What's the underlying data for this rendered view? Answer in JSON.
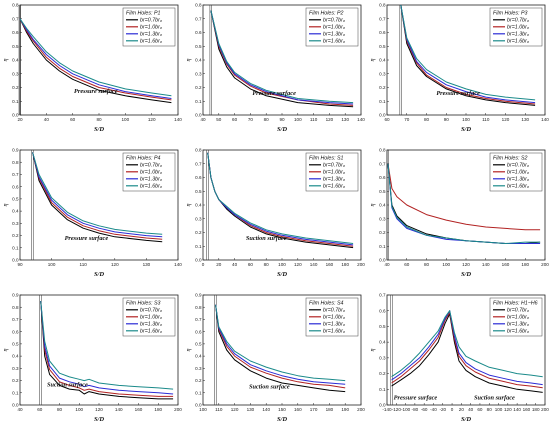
{
  "colors": {
    "series": [
      "#000000",
      "#b22222",
      "#2b2bd6",
      "#1a8a8a"
    ],
    "axis": "#222222"
  },
  "chart_data": [
    {
      "type": "line",
      "panel": "P1",
      "legend_title": "Film Holes: P1",
      "legend_position": "top-right",
      "annotations": [
        "Pressure surface"
      ],
      "xlabel": "S/D",
      "ylabel": "η",
      "xlim": [
        20,
        140
      ],
      "ylim": [
        0.0,
        0.8
      ],
      "xticks": [
        "20",
        "40",
        "60",
        "80",
        "100",
        "120",
        "140"
      ],
      "yticks": [
        "0.0",
        "0.1",
        "0.2",
        "0.3",
        "0.4",
        "0.5",
        "0.6",
        "0.7",
        "0.8"
      ],
      "x": [
        20,
        25,
        30,
        40,
        50,
        60,
        80,
        100,
        120,
        135
      ],
      "series": [
        {
          "name": "br=0.7br₀",
          "values": [
            0.7,
            0.6,
            0.52,
            0.4,
            0.32,
            0.26,
            0.18,
            0.14,
            0.11,
            0.09
          ]
        },
        {
          "name": "br=1.0br₀",
          "values": [
            0.7,
            0.61,
            0.54,
            0.42,
            0.34,
            0.28,
            0.2,
            0.16,
            0.13,
            0.11
          ]
        },
        {
          "name": "br=1.3br₀",
          "values": [
            0.7,
            0.62,
            0.55,
            0.44,
            0.36,
            0.3,
            0.22,
            0.17,
            0.14,
            0.12
          ]
        },
        {
          "name": "br=1.6br₀",
          "values": [
            0.7,
            0.63,
            0.57,
            0.46,
            0.38,
            0.32,
            0.24,
            0.19,
            0.16,
            0.14
          ]
        }
      ]
    },
    {
      "type": "line",
      "panel": "P2",
      "legend_title": "Film Holes: P2",
      "legend_position": "top-right",
      "annotations": [
        "Pressure surface"
      ],
      "xlabel": "S/D",
      "ylabel": "η",
      "xlim": [
        40,
        140
      ],
      "ylim": [
        0.0,
        0.8
      ],
      "xticks": [
        "40",
        "50",
        "60",
        "70",
        "80",
        "90",
        "100",
        "110",
        "120",
        "130",
        "140"
      ],
      "yticks": [
        "0.0",
        "0.1",
        "0.2",
        "0.3",
        "0.4",
        "0.5",
        "0.6",
        "0.7",
        "0.8"
      ],
      "x": [
        45,
        50,
        55,
        60,
        70,
        80,
        100,
        120,
        135
      ],
      "series": [
        {
          "name": "br=0.7br₀",
          "values": [
            0.76,
            0.48,
            0.35,
            0.27,
            0.19,
            0.14,
            0.09,
            0.07,
            0.06
          ]
        },
        {
          "name": "br=1.0br₀",
          "values": [
            0.76,
            0.5,
            0.37,
            0.29,
            0.21,
            0.16,
            0.11,
            0.08,
            0.07
          ]
        },
        {
          "name": "br=1.3br₀",
          "values": [
            0.76,
            0.51,
            0.38,
            0.3,
            0.22,
            0.17,
            0.11,
            0.09,
            0.08
          ]
        },
        {
          "name": "br=1.6br₀",
          "values": [
            0.76,
            0.52,
            0.39,
            0.31,
            0.23,
            0.18,
            0.12,
            0.1,
            0.09
          ]
        }
      ]
    },
    {
      "type": "line",
      "panel": "P3",
      "legend_title": "Film Holes: P3",
      "legend_position": "top-right",
      "annotations": [
        "Pressure surface"
      ],
      "xlabel": "S/D",
      "ylabel": "η",
      "xlim": [
        60,
        140
      ],
      "ylim": [
        0.0,
        0.8
      ],
      "xticks": [
        "60",
        "70",
        "80",
        "90",
        "100",
        "110",
        "120",
        "130",
        "140"
      ],
      "yticks": [
        "0.0",
        "0.1",
        "0.2",
        "0.3",
        "0.4",
        "0.5",
        "0.6",
        "0.7",
        "0.8"
      ],
      "x": [
        67,
        70,
        75,
        80,
        90,
        100,
        110,
        120,
        135
      ],
      "series": [
        {
          "name": "br=0.7br₀",
          "values": [
            0.8,
            0.52,
            0.36,
            0.28,
            0.19,
            0.14,
            0.11,
            0.09,
            0.07
          ]
        },
        {
          "name": "br=1.0br₀",
          "values": [
            0.8,
            0.54,
            0.38,
            0.29,
            0.2,
            0.15,
            0.12,
            0.1,
            0.08
          ]
        },
        {
          "name": "br=1.3br₀",
          "values": [
            0.8,
            0.55,
            0.39,
            0.31,
            0.22,
            0.17,
            0.13,
            0.11,
            0.09
          ]
        },
        {
          "name": "br=1.6br₀",
          "values": [
            0.8,
            0.56,
            0.41,
            0.33,
            0.24,
            0.19,
            0.15,
            0.13,
            0.11
          ]
        }
      ]
    },
    {
      "type": "line",
      "panel": "P4",
      "legend_title": "Film Holes: P4",
      "legend_position": "top-right",
      "annotations": [
        "Pressure surface"
      ],
      "xlabel": "S/D",
      "ylabel": "η",
      "xlim": [
        90,
        140
      ],
      "ylim": [
        0.0,
        0.9
      ],
      "xticks": [
        "90",
        "100",
        "110",
        "120",
        "130",
        "140"
      ],
      "yticks": [
        "0.0",
        "0.1",
        "0.2",
        "0.3",
        "0.4",
        "0.5",
        "0.6",
        "0.7",
        "0.8",
        "0.9"
      ],
      "x": [
        94,
        96,
        100,
        105,
        110,
        115,
        120,
        130,
        135
      ],
      "series": [
        {
          "name": "br=0.7br₀",
          "values": [
            0.88,
            0.65,
            0.45,
            0.33,
            0.26,
            0.22,
            0.19,
            0.16,
            0.15
          ]
        },
        {
          "name": "br=1.0br₀",
          "values": [
            0.88,
            0.67,
            0.47,
            0.35,
            0.28,
            0.24,
            0.21,
            0.18,
            0.17
          ]
        },
        {
          "name": "br=1.3br₀",
          "values": [
            0.88,
            0.68,
            0.49,
            0.37,
            0.3,
            0.26,
            0.23,
            0.2,
            0.19
          ]
        },
        {
          "name": "br=1.6br₀",
          "values": [
            0.88,
            0.7,
            0.51,
            0.39,
            0.32,
            0.28,
            0.25,
            0.22,
            0.21
          ]
        }
      ]
    },
    {
      "type": "line",
      "panel": "S1",
      "legend_title": "Film Holes: S1",
      "legend_position": "top-right",
      "annotations": [
        "Suction surface"
      ],
      "xlabel": "S/D",
      "ylabel": "η",
      "xlim": [
        0,
        200
      ],
      "ylim": [
        0.0,
        0.8
      ],
      "xticks": [
        "0",
        "20",
        "40",
        "60",
        "80",
        "100",
        "120",
        "140",
        "160",
        "180",
        "200"
      ],
      "yticks": [
        "0.0",
        "0.1",
        "0.2",
        "0.3",
        "0.4",
        "0.5",
        "0.6",
        "0.7",
        "0.8"
      ],
      "x": [
        6,
        10,
        15,
        20,
        30,
        40,
        60,
        80,
        100,
        130,
        160,
        190
      ],
      "series": [
        {
          "name": "br=0.7br₀",
          "values": [
            0.78,
            0.6,
            0.5,
            0.44,
            0.37,
            0.32,
            0.24,
            0.19,
            0.16,
            0.13,
            0.11,
            0.09
          ]
        },
        {
          "name": "br=1.0br₀",
          "values": [
            0.78,
            0.6,
            0.5,
            0.44,
            0.38,
            0.33,
            0.25,
            0.2,
            0.17,
            0.14,
            0.12,
            0.1
          ]
        },
        {
          "name": "br=1.3br₀",
          "values": [
            0.78,
            0.6,
            0.5,
            0.44,
            0.38,
            0.33,
            0.26,
            0.21,
            0.18,
            0.15,
            0.13,
            0.11
          ]
        },
        {
          "name": "br=1.6br₀",
          "values": [
            0.78,
            0.6,
            0.5,
            0.44,
            0.39,
            0.34,
            0.27,
            0.22,
            0.19,
            0.16,
            0.14,
            0.12
          ]
        }
      ]
    },
    {
      "type": "line",
      "panel": "S2",
      "legend_title": "Film Holes: S2",
      "legend_position": "top-right",
      "annotations": [],
      "xlabel": "S/D",
      "ylabel": "η",
      "xlim": [
        40,
        200
      ],
      "ylim": [
        0.0,
        0.8
      ],
      "xticks": [
        "40",
        "60",
        "80",
        "100",
        "120",
        "140",
        "160",
        "180",
        "200"
      ],
      "yticks": [
        "0.0",
        "0.1",
        "0.2",
        "0.3",
        "0.4",
        "0.5",
        "0.6",
        "0.7",
        "0.8"
      ],
      "x": [
        41,
        45,
        50,
        60,
        80,
        100,
        120,
        140,
        160,
        180,
        195
      ],
      "series": [
        {
          "name": "br=0.7br₀",
          "values": [
            0.7,
            0.4,
            0.32,
            0.25,
            0.19,
            0.16,
            0.14,
            0.13,
            0.12,
            0.12,
            0.13
          ]
        },
        {
          "name": "br=1.0br₀",
          "values": [
            0.7,
            0.52,
            0.46,
            0.4,
            0.33,
            0.29,
            0.26,
            0.24,
            0.23,
            0.22,
            0.22
          ]
        },
        {
          "name": "br=1.3br₀",
          "values": [
            0.7,
            0.38,
            0.3,
            0.23,
            0.18,
            0.15,
            0.14,
            0.13,
            0.12,
            0.12,
            0.12
          ]
        },
        {
          "name": "br=1.6br₀",
          "values": [
            0.7,
            0.39,
            0.31,
            0.24,
            0.18,
            0.16,
            0.14,
            0.13,
            0.12,
            0.13,
            0.13
          ]
        }
      ]
    },
    {
      "type": "line",
      "panel": "S3",
      "legend_title": "Film Holes: S3",
      "legend_position": "top-right",
      "annotations": [
        "Suction surface"
      ],
      "xlabel": "S/D",
      "ylabel": "η",
      "xlim": [
        40,
        200
      ],
      "ylim": [
        0.0,
        0.9
      ],
      "xticks": [
        "40",
        "60",
        "80",
        "100",
        "120",
        "140",
        "160",
        "180",
        "200"
      ],
      "yticks": [
        "0.0",
        "0.1",
        "0.2",
        "0.3",
        "0.4",
        "0.5",
        "0.6",
        "0.7",
        "0.8",
        "0.9"
      ],
      "x": [
        61,
        65,
        70,
        80,
        90,
        100,
        105,
        110,
        120,
        140,
        160,
        180,
        195
      ],
      "series": [
        {
          "name": "br=0.7br₀",
          "values": [
            0.85,
            0.4,
            0.25,
            0.16,
            0.13,
            0.12,
            0.09,
            0.11,
            0.09,
            0.07,
            0.06,
            0.05,
            0.05
          ]
        },
        {
          "name": "br=1.0br₀",
          "values": [
            0.85,
            0.45,
            0.29,
            0.19,
            0.16,
            0.14,
            0.12,
            0.13,
            0.11,
            0.09,
            0.08,
            0.07,
            0.07
          ]
        },
        {
          "name": "br=1.3br₀",
          "values": [
            0.85,
            0.48,
            0.32,
            0.22,
            0.19,
            0.17,
            0.15,
            0.16,
            0.14,
            0.12,
            0.11,
            0.1,
            0.09
          ]
        },
        {
          "name": "br=1.6br₀",
          "values": [
            0.85,
            0.52,
            0.36,
            0.26,
            0.23,
            0.21,
            0.2,
            0.21,
            0.18,
            0.16,
            0.15,
            0.14,
            0.13
          ]
        }
      ]
    },
    {
      "type": "line",
      "panel": "S4",
      "legend_title": "Film Holes: S4",
      "legend_position": "top-right",
      "annotations": [
        "Suction surface"
      ],
      "xlabel": "S/D",
      "ylabel": "η",
      "xlim": [
        100,
        200
      ],
      "ylim": [
        0.0,
        0.9
      ],
      "xticks": [
        "100",
        "110",
        "120",
        "130",
        "140",
        "150",
        "160",
        "170",
        "180",
        "190",
        "200"
      ],
      "yticks": [
        "0.0",
        "0.1",
        "0.2",
        "0.3",
        "0.4",
        "0.5",
        "0.6",
        "0.7",
        "0.8",
        "0.9"
      ],
      "x": [
        108,
        110,
        115,
        120,
        130,
        140,
        150,
        160,
        170,
        180,
        190
      ],
      "series": [
        {
          "name": "br=0.7br₀",
          "values": [
            0.82,
            0.6,
            0.45,
            0.37,
            0.28,
            0.22,
            0.18,
            0.16,
            0.14,
            0.12,
            0.11
          ]
        },
        {
          "name": "br=1.0br₀",
          "values": [
            0.82,
            0.62,
            0.48,
            0.4,
            0.31,
            0.26,
            0.22,
            0.19,
            0.17,
            0.16,
            0.14
          ]
        },
        {
          "name": "br=1.3br₀",
          "values": [
            0.82,
            0.63,
            0.5,
            0.42,
            0.33,
            0.28,
            0.24,
            0.21,
            0.19,
            0.18,
            0.17
          ]
        },
        {
          "name": "br=1.6br₀",
          "values": [
            0.82,
            0.64,
            0.52,
            0.44,
            0.36,
            0.31,
            0.27,
            0.24,
            0.22,
            0.21,
            0.2
          ]
        }
      ]
    },
    {
      "type": "line",
      "panel": "H1-H6",
      "legend_title": "Film Holes: H1~H6",
      "legend_position": "top-right",
      "annotations": [
        "Pressure surface",
        "Suction surface"
      ],
      "xlabel": "S/D",
      "ylabel": "η",
      "xlim": [
        -140,
        200
      ],
      "ylim": [
        0.0,
        0.7
      ],
      "xticks": [
        "-140",
        "-120",
        "-100",
        "-80",
        "-60",
        "-40",
        "-20",
        "0",
        "20",
        "40",
        "60",
        "80",
        "100",
        "120",
        "140",
        "160",
        "180",
        "200"
      ],
      "yticks": [
        "0.0",
        "0.1",
        "0.2",
        "0.3",
        "0.4",
        "0.5",
        "0.6",
        "0.7"
      ],
      "x": [
        -130,
        -110,
        -90,
        -70,
        -50,
        -30,
        -15,
        -5,
        5,
        15,
        30,
        50,
        80,
        110,
        140,
        170,
        195
      ],
      "series": [
        {
          "name": "br=0.7br₀",
          "values": [
            0.12,
            0.16,
            0.2,
            0.25,
            0.32,
            0.4,
            0.52,
            0.58,
            0.4,
            0.28,
            0.22,
            0.18,
            0.14,
            0.12,
            0.1,
            0.09,
            0.08
          ]
        },
        {
          "name": "br=1.0br₀",
          "values": [
            0.14,
            0.18,
            0.23,
            0.28,
            0.35,
            0.43,
            0.54,
            0.59,
            0.42,
            0.31,
            0.25,
            0.21,
            0.17,
            0.15,
            0.13,
            0.12,
            0.11
          ]
        },
        {
          "name": "br=1.3br₀",
          "values": [
            0.16,
            0.2,
            0.25,
            0.3,
            0.37,
            0.45,
            0.55,
            0.6,
            0.44,
            0.33,
            0.27,
            0.23,
            0.19,
            0.17,
            0.15,
            0.14,
            0.13
          ]
        },
        {
          "name": "br=1.6br₀",
          "values": [
            0.18,
            0.22,
            0.27,
            0.33,
            0.4,
            0.47,
            0.56,
            0.6,
            0.46,
            0.37,
            0.31,
            0.28,
            0.24,
            0.22,
            0.2,
            0.19,
            0.18
          ]
        }
      ]
    }
  ]
}
